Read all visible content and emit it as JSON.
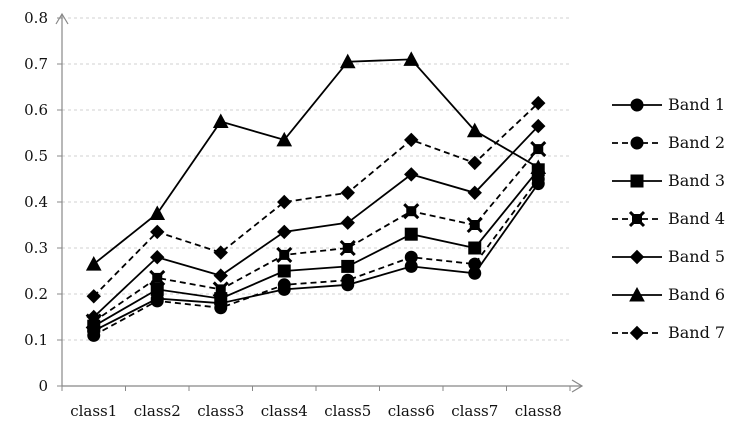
{
  "chart_data": {
    "type": "line",
    "title": "",
    "xlabel": "",
    "ylabel": "",
    "categories": [
      "class1",
      "class2",
      "class3",
      "class4",
      "class5",
      "class6",
      "class7",
      "class8"
    ],
    "ylim": [
      0,
      0.8
    ],
    "yticks": [
      "0",
      "0.1",
      "0.2",
      "0.3",
      "0.4",
      "0.5",
      "0.6",
      "0.7",
      "0.8"
    ],
    "grid": "horizontal dashed",
    "legend": "right",
    "series": [
      {
        "name": "Band 1",
        "marker": "circle",
        "dash": false,
        "values": [
          0.12,
          0.19,
          0.18,
          0.21,
          0.22,
          0.26,
          0.245,
          0.44
        ]
      },
      {
        "name": "Band 2",
        "marker": "circle",
        "dash": true,
        "values": [
          0.11,
          0.185,
          0.17,
          0.22,
          0.23,
          0.28,
          0.265,
          0.45
        ]
      },
      {
        "name": "Band 3",
        "marker": "square",
        "dash": false,
        "values": [
          0.13,
          0.21,
          0.19,
          0.25,
          0.26,
          0.33,
          0.3,
          0.47
        ]
      },
      {
        "name": "Band 4",
        "marker": "x-square",
        "dash": true,
        "values": [
          0.14,
          0.235,
          0.21,
          0.285,
          0.3,
          0.38,
          0.35,
          0.515
        ]
      },
      {
        "name": "Band 5",
        "marker": "diamond",
        "dash": false,
        "values": [
          0.15,
          0.28,
          0.24,
          0.335,
          0.355,
          0.46,
          0.42,
          0.565
        ]
      },
      {
        "name": "Band 6",
        "marker": "triangle",
        "dash": false,
        "values": [
          0.265,
          0.375,
          0.575,
          0.535,
          0.705,
          0.71,
          0.555,
          0.475
        ]
      },
      {
        "name": "Band 7",
        "marker": "diamond",
        "dash": true,
        "values": [
          0.195,
          0.335,
          0.29,
          0.4,
          0.42,
          0.535,
          0.485,
          0.615
        ]
      }
    ]
  }
}
